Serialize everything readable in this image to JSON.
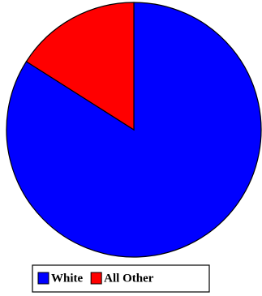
{
  "chart_data": {
    "type": "pie",
    "categories": [
      "White",
      "All Other"
    ],
    "values": [
      84,
      16
    ],
    "colors": [
      "#0000ff",
      "#ff0000"
    ],
    "legend": "bottom"
  }
}
